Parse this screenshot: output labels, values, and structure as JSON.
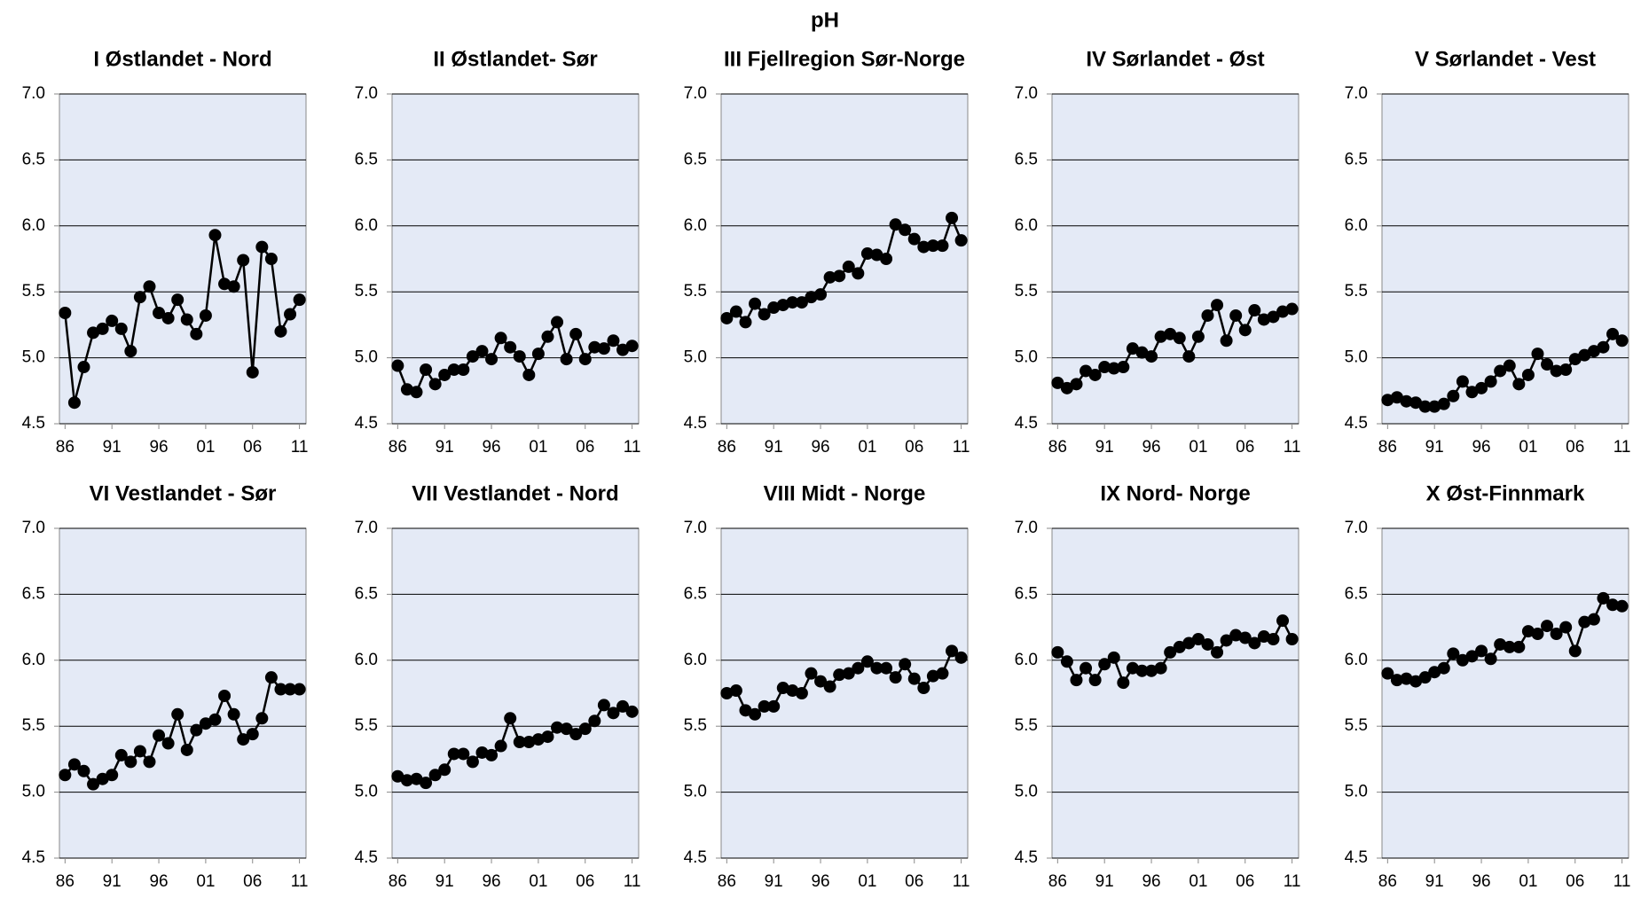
{
  "title": "pH",
  "chart_data": [
    {
      "type": "line",
      "title": "I Østlandet - Nord",
      "color": "#000000",
      "grid": true,
      "xlim": [
        1985.4,
        2011.7
      ],
      "ylim": [
        4.5,
        7
      ],
      "x": [
        1986,
        1987,
        1988,
        1989,
        1990,
        1991,
        1992,
        1993,
        1994,
        1995,
        1996,
        1997,
        1998,
        1999,
        2000,
        2001,
        2002,
        2003,
        2004,
        2005,
        2006,
        2007,
        2008,
        2009,
        2010,
        2011
      ],
      "values": [
        5.34,
        4.66,
        4.93,
        5.19,
        5.22,
        5.28,
        5.22,
        5.05,
        5.46,
        5.54,
        5.34,
        5.3,
        5.44,
        5.29,
        5.18,
        5.32,
        5.93,
        5.56,
        5.54,
        5.74,
        4.89,
        5.84,
        5.75,
        5.2,
        5.33,
        5.44
      ],
      "xticks": [
        {
          "value": 1986,
          "label": "86"
        },
        {
          "value": 1991,
          "label": "91"
        },
        {
          "value": 1996,
          "label": "96"
        },
        {
          "value": 2001,
          "label": "01"
        },
        {
          "value": 2006,
          "label": "06"
        },
        {
          "value": 2011,
          "label": "11"
        }
      ],
      "yticks": [
        4.5,
        {
          "value": 5,
          "label": "5.0"
        },
        5.5,
        {
          "value": 6,
          "label": "6.0"
        },
        6.5,
        {
          "value": 7,
          "label": "7.0"
        }
      ]
    },
    {
      "type": "line",
      "title": "II Østlandet- Sør",
      "color": "#000000",
      "grid": true,
      "xlim": [
        1985.4,
        2011.7
      ],
      "ylim": [
        4.5,
        7
      ],
      "x": [
        1986,
        1987,
        1988,
        1989,
        1990,
        1991,
        1992,
        1993,
        1994,
        1995,
        1996,
        1997,
        1998,
        1999,
        2000,
        2001,
        2002,
        2003,
        2004,
        2005,
        2006,
        2007,
        2008,
        2009,
        2010,
        2011
      ],
      "values": [
        4.94,
        4.76,
        4.74,
        4.91,
        4.8,
        4.87,
        4.91,
        4.91,
        5.01,
        5.05,
        4.99,
        5.15,
        5.08,
        5.01,
        4.87,
        5.03,
        5.16,
        5.27,
        4.99,
        5.18,
        4.99,
        5.08,
        5.07,
        5.13,
        5.06,
        5.09
      ],
      "xticks": [
        {
          "value": 1986,
          "label": "86"
        },
        {
          "value": 1991,
          "label": "91"
        },
        {
          "value": 1996,
          "label": "96"
        },
        {
          "value": 2001,
          "label": "01"
        },
        {
          "value": 2006,
          "label": "06"
        },
        {
          "value": 2011,
          "label": "11"
        }
      ],
      "yticks": [
        4.5,
        {
          "value": 5,
          "label": "5.0"
        },
        5.5,
        {
          "value": 6,
          "label": "6.0"
        },
        6.5,
        {
          "value": 7,
          "label": "7.0"
        }
      ]
    },
    {
      "type": "line",
      "title": "III Fjellregion Sør-Norge",
      "color": "#000000",
      "grid": true,
      "xlim": [
        1985.4,
        2011.7
      ],
      "ylim": [
        4.5,
        7
      ],
      "x": [
        1986,
        1987,
        1988,
        1989,
        1990,
        1991,
        1992,
        1993,
        1994,
        1995,
        1996,
        1997,
        1998,
        1999,
        2000,
        2001,
        2002,
        2003,
        2004,
        2005,
        2006,
        2007,
        2008,
        2009,
        2010,
        2011
      ],
      "values": [
        5.3,
        5.35,
        5.27,
        5.41,
        5.33,
        5.38,
        5.4,
        5.42,
        5.42,
        5.46,
        5.48,
        5.61,
        5.62,
        5.69,
        5.64,
        5.79,
        5.78,
        5.75,
        6.01,
        5.97,
        5.9,
        5.84,
        5.85,
        5.85,
        6.06,
        5.89
      ],
      "xticks": [
        {
          "value": 1986,
          "label": "86"
        },
        {
          "value": 1991,
          "label": "91"
        },
        {
          "value": 1996,
          "label": "96"
        },
        {
          "value": 2001,
          "label": "01"
        },
        {
          "value": 2006,
          "label": "06"
        },
        {
          "value": 2011,
          "label": "11"
        }
      ],
      "yticks": [
        4.5,
        {
          "value": 5,
          "label": "5.0"
        },
        5.5,
        {
          "value": 6,
          "label": "6.0"
        },
        6.5,
        {
          "value": 7,
          "label": "7.0"
        }
      ]
    },
    {
      "type": "line",
      "title": "IV Sørlandet - Øst",
      "color": "#000000",
      "grid": true,
      "xlim": [
        1985.4,
        2011.7
      ],
      "ylim": [
        4.5,
        7
      ],
      "x": [
        1986,
        1987,
        1988,
        1989,
        1990,
        1991,
        1992,
        1993,
        1994,
        1995,
        1996,
        1997,
        1998,
        1999,
        2000,
        2001,
        2002,
        2003,
        2004,
        2005,
        2006,
        2007,
        2008,
        2009,
        2010,
        2011
      ],
      "values": [
        4.81,
        4.77,
        4.8,
        4.9,
        4.87,
        4.93,
        4.92,
        4.93,
        5.07,
        5.04,
        5.01,
        5.16,
        5.18,
        5.15,
        5.01,
        5.16,
        5.32,
        5.4,
        5.13,
        5.32,
        5.21,
        5.36,
        5.29,
        5.31,
        5.35,
        5.37
      ],
      "xticks": [
        {
          "value": 1986,
          "label": "86"
        },
        {
          "value": 1991,
          "label": "91"
        },
        {
          "value": 1996,
          "label": "96"
        },
        {
          "value": 2001,
          "label": "01"
        },
        {
          "value": 2006,
          "label": "06"
        },
        {
          "value": 2011,
          "label": "11"
        }
      ],
      "yticks": [
        4.5,
        {
          "value": 5,
          "label": "5.0"
        },
        5.5,
        {
          "value": 6,
          "label": "6.0"
        },
        6.5,
        {
          "value": 7,
          "label": "7.0"
        }
      ]
    },
    {
      "type": "line",
      "title": "V Sørlandet - Vest",
      "color": "#000000",
      "grid": true,
      "xlim": [
        1985.4,
        2011.7
      ],
      "ylim": [
        4.5,
        7
      ],
      "x": [
        1986,
        1987,
        1988,
        1989,
        1990,
        1991,
        1992,
        1993,
        1994,
        1995,
        1996,
        1997,
        1998,
        1999,
        2000,
        2001,
        2002,
        2003,
        2004,
        2005,
        2006,
        2007,
        2008,
        2009,
        2010,
        2011
      ],
      "values": [
        4.68,
        4.7,
        4.67,
        4.66,
        4.63,
        4.63,
        4.65,
        4.71,
        4.82,
        4.74,
        4.77,
        4.82,
        4.9,
        4.94,
        4.8,
        4.87,
        5.03,
        4.95,
        4.9,
        4.91,
        4.99,
        5.02,
        5.05,
        5.08,
        5.18,
        5.13
      ],
      "xticks": [
        {
          "value": 1986,
          "label": "86"
        },
        {
          "value": 1991,
          "label": "91"
        },
        {
          "value": 1996,
          "label": "96"
        },
        {
          "value": 2001,
          "label": "01"
        },
        {
          "value": 2006,
          "label": "06"
        },
        {
          "value": 2011,
          "label": "11"
        }
      ],
      "yticks": [
        4.5,
        {
          "value": 5,
          "label": "5.0"
        },
        5.5,
        {
          "value": 6,
          "label": "6.0"
        },
        6.5,
        {
          "value": 7,
          "label": "7.0"
        }
      ]
    },
    {
      "type": "line",
      "title": "VI Vestlandet - Sør",
      "color": "#000000",
      "grid": true,
      "xlim": [
        1985.4,
        2011.7
      ],
      "ylim": [
        4.5,
        7
      ],
      "x": [
        1986,
        1987,
        1988,
        1989,
        1990,
        1991,
        1992,
        1993,
        1994,
        1995,
        1996,
        1997,
        1998,
        1999,
        2000,
        2001,
        2002,
        2003,
        2004,
        2005,
        2006,
        2007,
        2008,
        2009,
        2010,
        2011
      ],
      "values": [
        5.13,
        5.21,
        5.16,
        5.06,
        5.1,
        5.13,
        5.28,
        5.23,
        5.31,
        5.23,
        5.43,
        5.37,
        5.59,
        5.32,
        5.47,
        5.52,
        5.55,
        5.73,
        5.59,
        5.4,
        5.44,
        5.56,
        5.87,
        5.78,
        5.78,
        5.78
      ],
      "xticks": [
        {
          "value": 1986,
          "label": "86"
        },
        {
          "value": 1991,
          "label": "91"
        },
        {
          "value": 1996,
          "label": "96"
        },
        {
          "value": 2001,
          "label": "01"
        },
        {
          "value": 2006,
          "label": "06"
        },
        {
          "value": 2011,
          "label": "11"
        }
      ],
      "yticks": [
        4.5,
        {
          "value": 5,
          "label": "5.0"
        },
        5.5,
        {
          "value": 6,
          "label": "6.0"
        },
        6.5,
        {
          "value": 7,
          "label": "7.0"
        }
      ]
    },
    {
      "type": "line",
      "title": "VII Vestlandet - Nord",
      "color": "#000000",
      "grid": true,
      "xlim": [
        1985.4,
        2011.7
      ],
      "ylim": [
        4.5,
        7
      ],
      "x": [
        1986,
        1987,
        1988,
        1989,
        1990,
        1991,
        1992,
        1993,
        1994,
        1995,
        1996,
        1997,
        1998,
        1999,
        2000,
        2001,
        2002,
        2003,
        2004,
        2005,
        2006,
        2007,
        2008,
        2009,
        2010,
        2011
      ],
      "values": [
        5.12,
        5.09,
        5.1,
        5.07,
        5.13,
        5.17,
        5.29,
        5.29,
        5.23,
        5.3,
        5.28,
        5.35,
        5.56,
        5.38,
        5.38,
        5.4,
        5.42,
        5.49,
        5.48,
        5.44,
        5.48,
        5.54,
        5.66,
        5.6,
        5.65,
        5.61
      ],
      "xticks": [
        {
          "value": 1986,
          "label": "86"
        },
        {
          "value": 1991,
          "label": "91"
        },
        {
          "value": 1996,
          "label": "96"
        },
        {
          "value": 2001,
          "label": "01"
        },
        {
          "value": 2006,
          "label": "06"
        },
        {
          "value": 2011,
          "label": "11"
        }
      ],
      "yticks": [
        4.5,
        {
          "value": 5,
          "label": "5.0"
        },
        5.5,
        {
          "value": 6,
          "label": "6.0"
        },
        6.5,
        {
          "value": 7,
          "label": "7.0"
        }
      ]
    },
    {
      "type": "line",
      "title": "VIII Midt - Norge",
      "color": "#000000",
      "grid": true,
      "xlim": [
        1985.4,
        2011.7
      ],
      "ylim": [
        4.5,
        7
      ],
      "x": [
        1986,
        1987,
        1988,
        1989,
        1990,
        1991,
        1992,
        1993,
        1994,
        1995,
        1996,
        1997,
        1998,
        1999,
        2000,
        2001,
        2002,
        2003,
        2004,
        2005,
        2006,
        2007,
        2008,
        2009,
        2010,
        2011
      ],
      "values": [
        5.75,
        5.77,
        5.62,
        5.59,
        5.65,
        5.65,
        5.79,
        5.77,
        5.75,
        5.9,
        5.84,
        5.8,
        5.89,
        5.9,
        5.94,
        5.99,
        5.94,
        5.94,
        5.87,
        5.97,
        5.86,
        5.79,
        5.88,
        5.9,
        6.07,
        6.02
      ],
      "xticks": [
        {
          "value": 1986,
          "label": "86"
        },
        {
          "value": 1991,
          "label": "91"
        },
        {
          "value": 1996,
          "label": "96"
        },
        {
          "value": 2001,
          "label": "01"
        },
        {
          "value": 2006,
          "label": "06"
        },
        {
          "value": 2011,
          "label": "11"
        }
      ],
      "yticks": [
        4.5,
        {
          "value": 5,
          "label": "5.0"
        },
        5.5,
        {
          "value": 6,
          "label": "6.0"
        },
        6.5,
        {
          "value": 7,
          "label": "7.0"
        }
      ]
    },
    {
      "type": "line",
      "title": "IX Nord- Norge",
      "color": "#000000",
      "grid": true,
      "xlim": [
        1985.4,
        2011.7
      ],
      "ylim": [
        4.5,
        7
      ],
      "x": [
        1986,
        1987,
        1988,
        1989,
        1990,
        1991,
        1992,
        1993,
        1994,
        1995,
        1996,
        1997,
        1998,
        1999,
        2000,
        2001,
        2002,
        2003,
        2004,
        2005,
        2006,
        2007,
        2008,
        2009,
        2010,
        2011
      ],
      "values": [
        6.06,
        5.99,
        5.85,
        5.94,
        5.85,
        5.97,
        6.02,
        5.83,
        5.94,
        5.92,
        5.92,
        5.94,
        6.06,
        6.1,
        6.13,
        6.16,
        6.12,
        6.06,
        6.15,
        6.19,
        6.17,
        6.13,
        6.18,
        6.16,
        6.3,
        6.16
      ],
      "xticks": [
        {
          "value": 1986,
          "label": "86"
        },
        {
          "value": 1991,
          "label": "91"
        },
        {
          "value": 1996,
          "label": "96"
        },
        {
          "value": 2001,
          "label": "01"
        },
        {
          "value": 2006,
          "label": "06"
        },
        {
          "value": 2011,
          "label": "11"
        }
      ],
      "yticks": [
        4.5,
        {
          "value": 5,
          "label": "5.0"
        },
        5.5,
        {
          "value": 6,
          "label": "6.0"
        },
        6.5,
        {
          "value": 7,
          "label": "7.0"
        }
      ]
    },
    {
      "type": "line",
      "title": "X Øst-Finnmark",
      "color": "#000000",
      "grid": true,
      "xlim": [
        1985.4,
        2011.7
      ],
      "ylim": [
        4.5,
        7
      ],
      "x": [
        1986,
        1987,
        1988,
        1989,
        1990,
        1991,
        1992,
        1993,
        1994,
        1995,
        1996,
        1997,
        1998,
        1999,
        2000,
        2001,
        2002,
        2003,
        2004,
        2005,
        2006,
        2007,
        2008,
        2009,
        2010,
        2011
      ],
      "values": [
        5.9,
        5.85,
        5.86,
        5.84,
        5.87,
        5.91,
        5.94,
        6.05,
        6.0,
        6.03,
        6.07,
        6.01,
        6.12,
        6.1,
        6.1,
        6.22,
        6.2,
        6.26,
        6.2,
        6.25,
        6.07,
        6.29,
        6.31,
        6.47,
        6.42,
        6.41
      ],
      "xticks": [
        {
          "value": 1986,
          "label": "86"
        },
        {
          "value": 1991,
          "label": "91"
        },
        {
          "value": 1996,
          "label": "96"
        },
        {
          "value": 2001,
          "label": "01"
        },
        {
          "value": 2006,
          "label": "06"
        },
        {
          "value": 2011,
          "label": "11"
        }
      ],
      "yticks": [
        4.5,
        {
          "value": 5,
          "label": "5.0"
        },
        5.5,
        {
          "value": 6,
          "label": "6.0"
        },
        6.5,
        {
          "value": 7,
          "label": "7.0"
        }
      ]
    }
  ]
}
